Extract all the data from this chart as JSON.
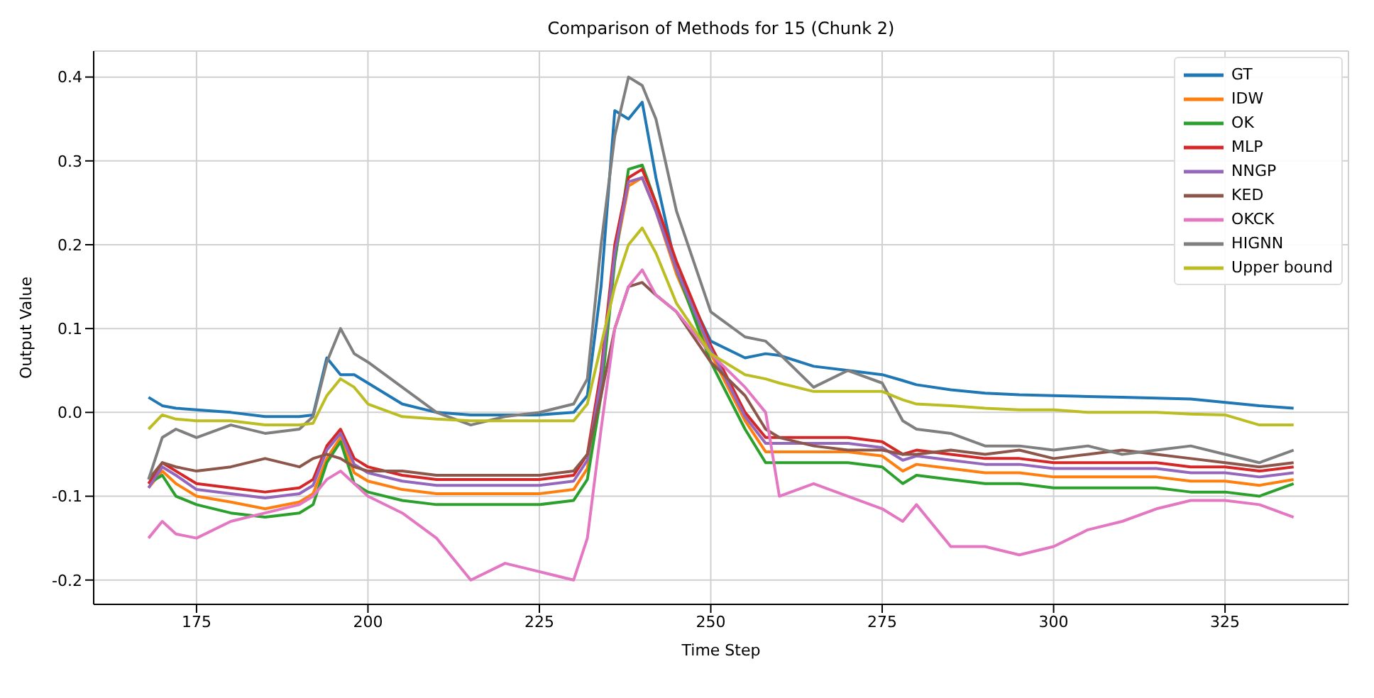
{
  "chart_data": {
    "type": "line",
    "title": "Comparison of Methods for 15 (Chunk 2)",
    "xlabel": "Time Step",
    "ylabel": "Output Value",
    "x": [
      168,
      170,
      172,
      175,
      180,
      185,
      190,
      192,
      194,
      196,
      198,
      200,
      205,
      210,
      215,
      220,
      225,
      230,
      232,
      234,
      236,
      238,
      240,
      242,
      245,
      250,
      255,
      258,
      260,
      265,
      270,
      275,
      278,
      280,
      285,
      290,
      295,
      300,
      305,
      310,
      315,
      320,
      325,
      330,
      335
    ],
    "series": [
      {
        "name": "GT",
        "color": "#1f77b4",
        "values": [
          0.018,
          0.008,
          0.005,
          0.003,
          0.0,
          -0.005,
          -0.005,
          -0.003,
          0.065,
          0.045,
          0.045,
          0.035,
          0.01,
          0.0,
          -0.003,
          -0.003,
          -0.003,
          0.0,
          0.02,
          0.15,
          0.36,
          0.35,
          0.37,
          0.28,
          0.17,
          0.085,
          0.065,
          0.07,
          0.068,
          0.055,
          0.05,
          0.045,
          0.038,
          0.033,
          0.027,
          0.023,
          0.021,
          0.02,
          0.019,
          0.018,
          0.017,
          0.016,
          0.012,
          0.008,
          0.005
        ]
      },
      {
        "name": "IDW",
        "color": "#ff7f0e",
        "values": [
          -0.09,
          -0.07,
          -0.085,
          -0.1,
          -0.107,
          -0.115,
          -0.107,
          -0.097,
          -0.055,
          -0.03,
          -0.072,
          -0.082,
          -0.092,
          -0.097,
          -0.097,
          -0.097,
          -0.097,
          -0.092,
          -0.067,
          0.03,
          0.185,
          0.27,
          0.28,
          0.24,
          0.165,
          0.07,
          -0.01,
          -0.047,
          -0.047,
          -0.047,
          -0.047,
          -0.052,
          -0.07,
          -0.062,
          -0.067,
          -0.072,
          -0.072,
          -0.077,
          -0.077,
          -0.077,
          -0.077,
          -0.082,
          -0.082,
          -0.087,
          -0.08
        ]
      },
      {
        "name": "OK",
        "color": "#2ca02c",
        "values": [
          -0.085,
          -0.075,
          -0.1,
          -0.11,
          -0.12,
          -0.125,
          -0.12,
          -0.11,
          -0.06,
          -0.035,
          -0.085,
          -0.095,
          -0.105,
          -0.11,
          -0.11,
          -0.11,
          -0.11,
          -0.105,
          -0.08,
          0.02,
          0.18,
          0.29,
          0.295,
          0.25,
          0.17,
          0.06,
          -0.02,
          -0.06,
          -0.06,
          -0.06,
          -0.06,
          -0.065,
          -0.085,
          -0.075,
          -0.08,
          -0.085,
          -0.085,
          -0.09,
          -0.09,
          -0.09,
          -0.09,
          -0.095,
          -0.095,
          -0.1,
          -0.085
        ]
      },
      {
        "name": "MLP",
        "color": "#d62728",
        "values": [
          -0.085,
          -0.06,
          -0.07,
          -0.085,
          -0.09,
          -0.095,
          -0.09,
          -0.08,
          -0.04,
          -0.02,
          -0.055,
          -0.065,
          -0.075,
          -0.08,
          -0.08,
          -0.08,
          -0.08,
          -0.075,
          -0.05,
          0.05,
          0.2,
          0.28,
          0.29,
          0.25,
          0.18,
          0.08,
          0.0,
          -0.03,
          -0.03,
          -0.03,
          -0.03,
          -0.035,
          -0.05,
          -0.045,
          -0.05,
          -0.055,
          -0.055,
          -0.06,
          -0.06,
          -0.06,
          -0.06,
          -0.065,
          -0.065,
          -0.07,
          -0.065
        ]
      },
      {
        "name": "NNGP",
        "color": "#9467bd",
        "values": [
          -0.09,
          -0.065,
          -0.075,
          -0.092,
          -0.097,
          -0.102,
          -0.097,
          -0.087,
          -0.045,
          -0.025,
          -0.062,
          -0.072,
          -0.082,
          -0.087,
          -0.087,
          -0.087,
          -0.087,
          -0.082,
          -0.057,
          0.04,
          0.19,
          0.275,
          0.28,
          0.24,
          0.17,
          0.075,
          -0.005,
          -0.037,
          -0.037,
          -0.037,
          -0.037,
          -0.042,
          -0.057,
          -0.052,
          -0.057,
          -0.062,
          -0.062,
          -0.067,
          -0.067,
          -0.067,
          -0.067,
          -0.072,
          -0.072,
          -0.077,
          -0.072
        ]
      },
      {
        "name": "KED",
        "color": "#8c564b",
        "values": [
          -0.08,
          -0.06,
          -0.065,
          -0.07,
          -0.065,
          -0.055,
          -0.065,
          -0.055,
          -0.05,
          -0.055,
          -0.065,
          -0.07,
          -0.07,
          -0.075,
          -0.075,
          -0.075,
          -0.075,
          -0.07,
          -0.05,
          0.02,
          0.1,
          0.15,
          0.155,
          0.14,
          0.12,
          0.06,
          0.02,
          -0.02,
          -0.03,
          -0.04,
          -0.045,
          -0.045,
          -0.05,
          -0.05,
          -0.045,
          -0.05,
          -0.045,
          -0.055,
          -0.05,
          -0.045,
          -0.05,
          -0.055,
          -0.06,
          -0.065,
          -0.06
        ]
      },
      {
        "name": "OKCK",
        "color": "#e377c2",
        "values": [
          -0.15,
          -0.13,
          -0.145,
          -0.15,
          -0.13,
          -0.12,
          -0.11,
          -0.1,
          -0.08,
          -0.07,
          -0.085,
          -0.1,
          -0.12,
          -0.15,
          -0.2,
          -0.18,
          -0.19,
          -0.2,
          -0.15,
          -0.02,
          0.1,
          0.15,
          0.17,
          0.14,
          0.12,
          0.07,
          0.03,
          0.0,
          -0.1,
          -0.085,
          -0.1,
          -0.115,
          -0.13,
          -0.11,
          -0.16,
          -0.16,
          -0.17,
          -0.16,
          -0.14,
          -0.13,
          -0.115,
          -0.105,
          -0.105,
          -0.11,
          -0.125
        ]
      },
      {
        "name": "HIGNN",
        "color": "#7f7f7f",
        "values": [
          -0.08,
          -0.03,
          -0.02,
          -0.03,
          -0.015,
          -0.025,
          -0.02,
          -0.005,
          0.06,
          0.1,
          0.07,
          0.06,
          0.03,
          0.0,
          -0.015,
          -0.005,
          0.0,
          0.01,
          0.04,
          0.2,
          0.33,
          0.4,
          0.39,
          0.35,
          0.24,
          0.12,
          0.09,
          0.085,
          0.07,
          0.03,
          0.05,
          0.035,
          -0.01,
          -0.02,
          -0.025,
          -0.04,
          -0.04,
          -0.045,
          -0.04,
          -0.05,
          -0.045,
          -0.04,
          -0.05,
          -0.06,
          -0.045
        ]
      },
      {
        "name": "Upper bound",
        "color": "#bcbd22",
        "values": [
          -0.02,
          -0.003,
          -0.008,
          -0.01,
          -0.01,
          -0.015,
          -0.015,
          -0.013,
          0.02,
          0.04,
          0.03,
          0.01,
          -0.005,
          -0.008,
          -0.01,
          -0.01,
          -0.01,
          -0.01,
          0.01,
          0.08,
          0.15,
          0.2,
          0.22,
          0.19,
          0.13,
          0.07,
          0.045,
          0.04,
          0.035,
          0.025,
          0.025,
          0.025,
          0.015,
          0.01,
          0.008,
          0.005,
          0.003,
          0.003,
          0.0,
          0.0,
          0.0,
          -0.002,
          -0.003,
          -0.015,
          -0.015
        ]
      }
    ],
    "xlim": [
      160,
      343
    ],
    "xticks": [
      175,
      200,
      225,
      250,
      275,
      300,
      325
    ],
    "ylim": [
      -0.229,
      0.431
    ],
    "yticks": [
      -0.2,
      -0.1,
      {
        "value": 0,
        "label": "0.0"
      },
      0.1,
      0.2,
      0.3,
      0.4
    ],
    "grid": true,
    "legend": "top right",
    "marker": "none",
    "line_style": "solid"
  }
}
